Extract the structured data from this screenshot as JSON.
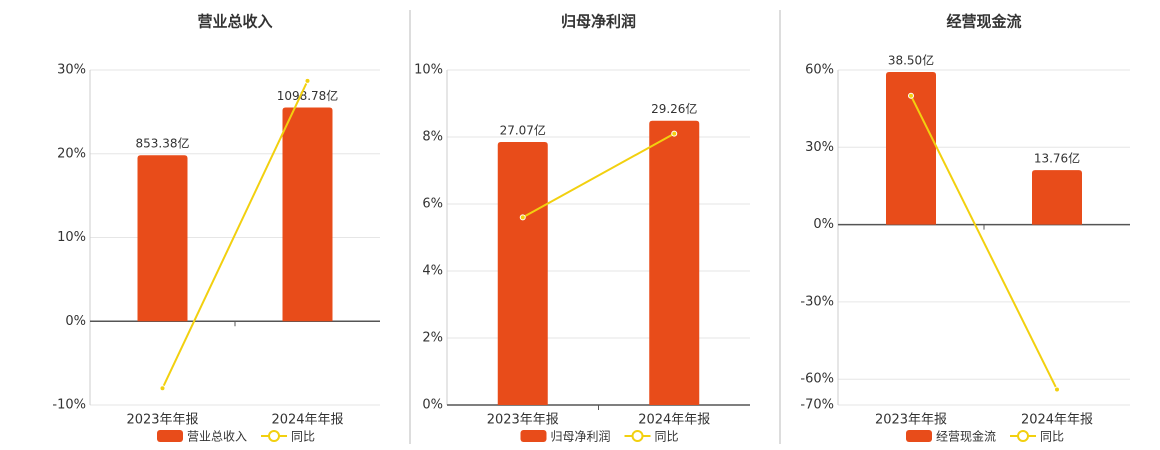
{
  "chart_data": [
    {
      "type": "bar",
      "title": "营业总收入",
      "categories": [
        "2023年年报",
        "2024年年报"
      ],
      "series": [
        {
          "name": "营业总收入",
          "color": "#e84c1a",
          "axis": "y2",
          "values": [
            853.38,
            1098.78
          ],
          "value_labels": [
            "853.38亿",
            "1098.78亿"
          ]
        },
        {
          "name": "同比",
          "type": "line",
          "color": "#f2d00f",
          "values": [
            -8,
            28.7
          ]
        }
      ],
      "ylim": [
        -10,
        30
      ],
      "y2lim": [
        -430.5,
        1291.5
      ],
      "yticks": [
        {
          "value": -10,
          "label": "-10%"
        },
        {
          "value": 0,
          "label": "0%"
        },
        {
          "value": 10,
          "label": "10%"
        },
        {
          "value": 20,
          "label": "20%"
        },
        {
          "value": 30,
          "label": "30%"
        }
      ],
      "grid": true
    },
    {
      "type": "bar",
      "title": "归母净利润",
      "categories": [
        "2023年年报",
        "2024年年报"
      ],
      "series": [
        {
          "name": "归母净利润",
          "color": "#e84c1a",
          "axis": "y2",
          "values": [
            27.07,
            29.26
          ],
          "value_labels": [
            "27.07亿",
            "29.26亿"
          ]
        },
        {
          "name": "同比",
          "type": "line",
          "color": "#f2d00f",
          "values": [
            5.6,
            8.1
          ]
        }
      ],
      "ylim": [
        0,
        10
      ],
      "y2lim": [
        0,
        34.48
      ],
      "yticks": [
        {
          "value": 0,
          "label": "0%"
        },
        {
          "value": 2,
          "label": "2%"
        },
        {
          "value": 4,
          "label": "4%"
        },
        {
          "value": 6,
          "label": "6%"
        },
        {
          "value": 8,
          "label": "8%"
        },
        {
          "value": 10,
          "label": "10%"
        }
      ],
      "grid": true
    },
    {
      "type": "bar",
      "title": "经营现金流",
      "categories": [
        "2023年年报",
        "2024年年报"
      ],
      "series": [
        {
          "name": "经营现金流",
          "color": "#e84c1a",
          "axis": "y2",
          "values": [
            38.5,
            13.76
          ],
          "value_labels": [
            "38.50亿",
            "13.76亿"
          ]
        },
        {
          "name": "同比",
          "type": "line",
          "color": "#f2d00f",
          "values": [
            50,
            -64
          ]
        }
      ],
      "ylim": [
        -70,
        60
      ],
      "y2lim": [
        -45.5,
        39
      ],
      "yticks": [
        {
          "value": -70,
          "label": "-70%"
        },
        {
          "value": -60,
          "label": "-60%"
        },
        {
          "value": -30,
          "label": "-30%"
        },
        {
          "value": 0,
          "label": "0%"
        },
        {
          "value": 30,
          "label": "30%"
        },
        {
          "value": 60,
          "label": "60%"
        }
      ],
      "grid": true
    }
  ]
}
